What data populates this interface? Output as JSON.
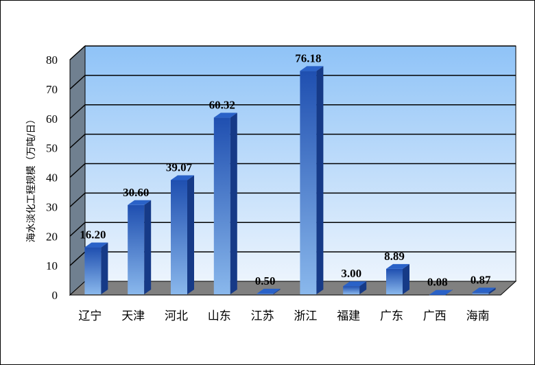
{
  "chart_data": {
    "type": "bar",
    "title": "",
    "xlabel": "",
    "ylabel": "海水淡化工程规模（万吨/日）",
    "ylim": [
      0,
      80
    ],
    "yticks": [
      0,
      10,
      20,
      30,
      40,
      50,
      60,
      70,
      80
    ],
    "grid": true,
    "categories": [
      "辽宁",
      "天津",
      "河北",
      "山东",
      "江苏",
      "浙江",
      "福建",
      "广东",
      "广西",
      "海南"
    ],
    "values": [
      16.2,
      30.6,
      39.07,
      60.32,
      0.5,
      76.18,
      3.0,
      8.89,
      0.08,
      0.87
    ],
    "value_labels": [
      "16.20",
      "30.60",
      "39.07",
      "60.32",
      "0.50",
      "76.18",
      "3.00",
      "8.89",
      "0.08",
      "0.87"
    ],
    "colors": {
      "bar_top": "#1f4fb0",
      "bar_bottom": "#8ab8ec",
      "bar_side": "#163a87",
      "bar_cap": "#2a62c8",
      "plot_top": "#8fc3f7",
      "plot_bottom": "#ecf4fd",
      "side_wall": "#708090",
      "floor": "#808080"
    }
  }
}
